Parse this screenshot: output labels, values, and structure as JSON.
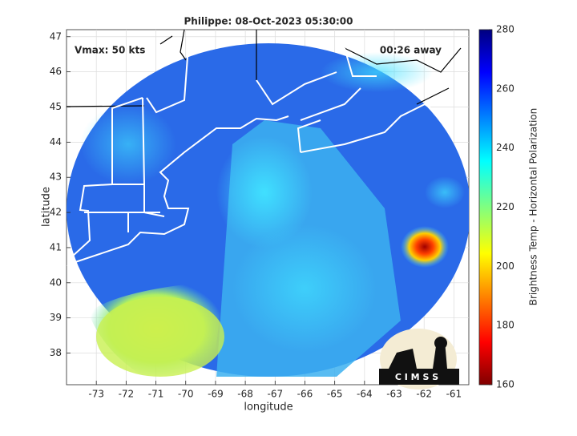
{
  "title": "Philippe: 08-Oct-2023 05:30:00",
  "annotations": {
    "vmax": "Vmax: 50 kts",
    "away": "00:26 away"
  },
  "x_axis": {
    "label": "longitude",
    "lim": [
      -74,
      -60.5
    ],
    "ticks": [
      -73,
      -72,
      -71,
      -70,
      -69,
      -68,
      -67,
      -66,
      -65,
      -64,
      -63,
      -62,
      -61
    ]
  },
  "y_axis": {
    "label": "latitude",
    "lim": [
      37.1,
      47.2
    ],
    "ticks": [
      38,
      39,
      40,
      41,
      42,
      43,
      44,
      45,
      46,
      47
    ]
  },
  "colorbar": {
    "label": "Brightness Temp - Horizontal Polarization",
    "lim": [
      160,
      280
    ],
    "ticks": [
      160,
      180,
      200,
      220,
      240,
      260,
      280
    ]
  },
  "logo": {
    "text": "C I M S S"
  }
}
